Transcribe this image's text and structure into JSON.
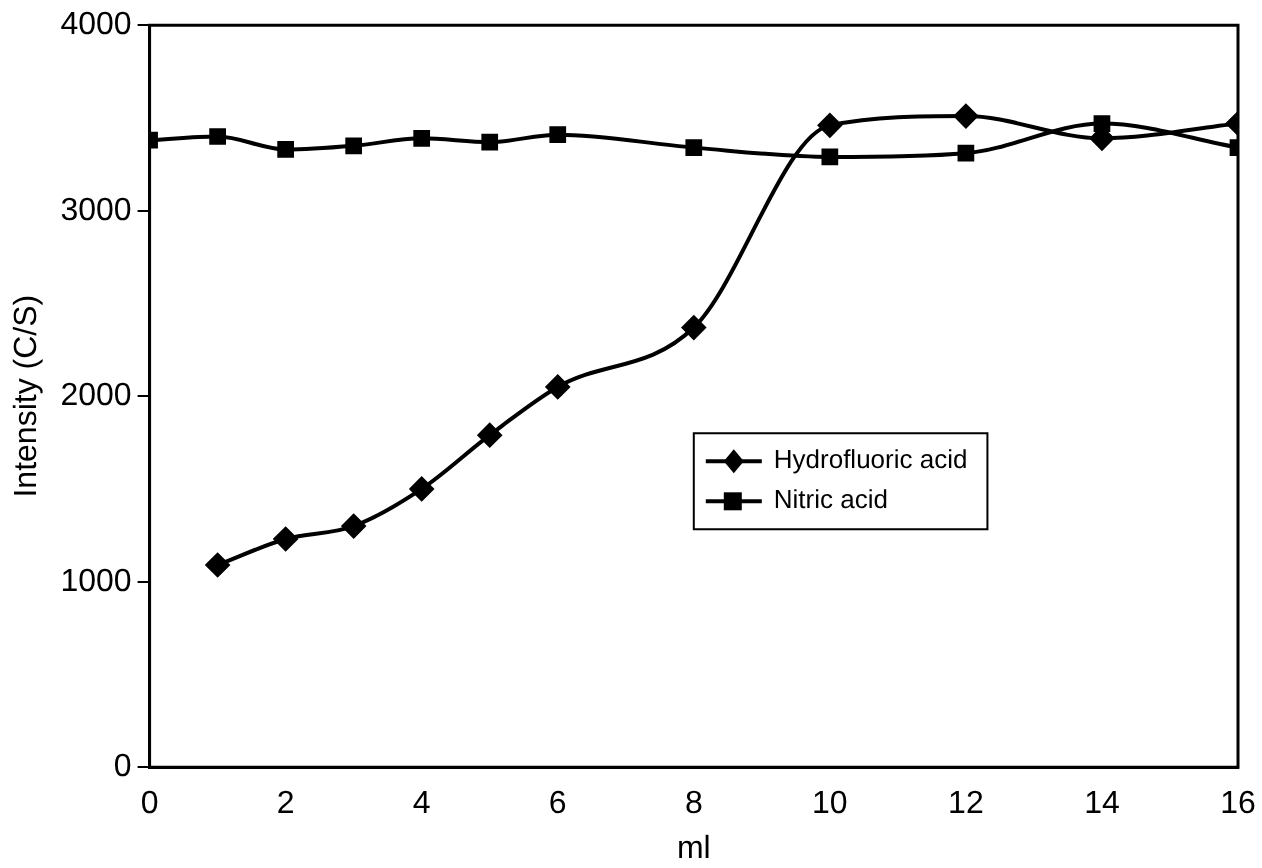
{
  "chart_data": {
    "type": "line",
    "xlabel": "ml",
    "ylabel": "Intensity (C/S)",
    "xlim": [
      0,
      16
    ],
    "xticks": [
      0,
      2,
      4,
      6,
      8,
      10,
      12,
      14,
      16
    ],
    "ylim": [
      0,
      4000
    ],
    "yticks": [
      0,
      1000,
      2000,
      3000,
      4000
    ],
    "grid": false,
    "legend": "right",
    "series": [
      {
        "name": "Hydrofluoric acid",
        "color": "#000000",
        "marker": "diamond",
        "x": [
          1,
          2,
          3,
          4,
          5,
          6,
          8,
          10,
          12,
          14,
          16
        ],
        "values": [
          1090,
          1230,
          1300,
          1500,
          1790,
          2050,
          2370,
          3460,
          3510,
          3390,
          3470
        ]
      },
      {
        "name": "Nitric acid",
        "color": "#000000",
        "marker": "square",
        "x": [
          0,
          1,
          2,
          3,
          4,
          5,
          6,
          8,
          10,
          12,
          14,
          16
        ],
        "values": [
          3380,
          3400,
          3330,
          3350,
          3390,
          3370,
          3410,
          3340,
          3290,
          3310,
          3470,
          3340
        ]
      }
    ]
  }
}
